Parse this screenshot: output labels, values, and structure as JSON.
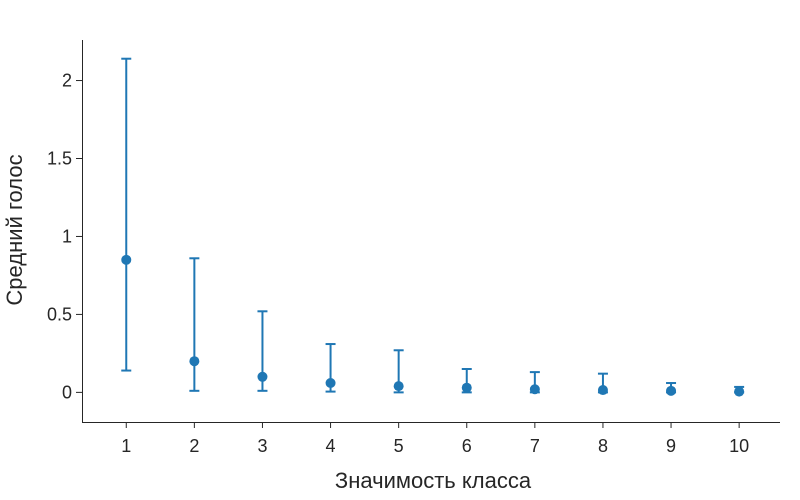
{
  "chart_data": {
    "type": "scatter",
    "title": "",
    "xlabel": "Значимость класса",
    "ylabel": "Средний голос",
    "x": [
      1,
      2,
      3,
      4,
      5,
      6,
      7,
      8,
      9,
      10
    ],
    "series": [
      {
        "mean": [
          0.85,
          0.2,
          0.1,
          0.06,
          0.04,
          0.03,
          0.02,
          0.015,
          0.01,
          0.005
        ],
        "lower": [
          0.14,
          0.01,
          0.01,
          0.005,
          0.0,
          0.0,
          0.0,
          0.0,
          0.0,
          0.0
        ],
        "upper": [
          2.14,
          0.86,
          0.52,
          0.31,
          0.27,
          0.15,
          0.13,
          0.12,
          0.06,
          0.035
        ]
      }
    ],
    "xticks": [
      "1",
      "2",
      "3",
      "4",
      "5",
      "6",
      "7",
      "8",
      "9",
      "10"
    ],
    "yticks": [
      {
        "value": 0,
        "label": "0"
      },
      {
        "value": 0.5,
        "label": "0.5"
      },
      {
        "value": 1,
        "label": "1"
      },
      {
        "value": 1.5,
        "label": "1.5"
      },
      {
        "value": 2,
        "label": "2"
      }
    ],
    "xlim": [
      0.35,
      10.6
    ],
    "ylim": [
      -0.19,
      2.26
    ],
    "grid": false,
    "color": "#1f77b4"
  }
}
